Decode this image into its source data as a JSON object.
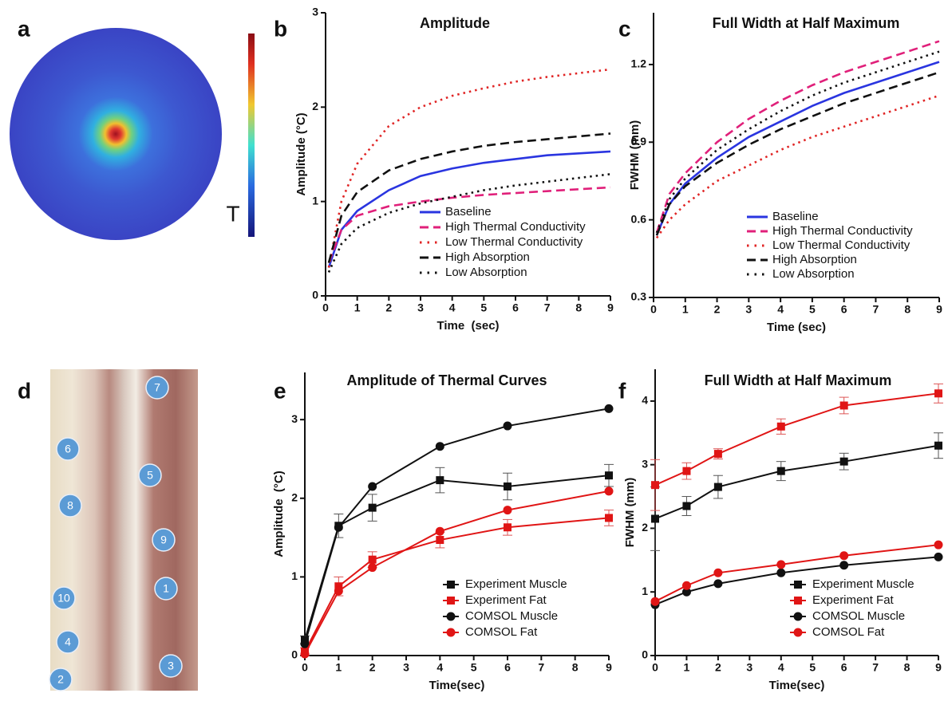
{
  "chart_data": [
    {
      "type": "heatmap",
      "panel": "a",
      "colorbar_label": "T"
    },
    {
      "type": "line",
      "panel": "b",
      "title": "Amplitude",
      "x_label": "Time  (sec)",
      "y_label": "Amplitude (°C)",
      "x": [
        0.1,
        0.5,
        1,
        2,
        3,
        4,
        5,
        6,
        7,
        8,
        9
      ],
      "xlim": [
        0,
        9
      ],
      "xticks": [
        0,
        1,
        2,
        3,
        4,
        5,
        6,
        7,
        8,
        9
      ],
      "ylim": [
        0,
        3
      ],
      "yticks": [
        0,
        1,
        2,
        3
      ],
      "legend": "lower right",
      "series": [
        {
          "name": "Baseline",
          "color": "#2a35e0",
          "dash": "solid",
          "values": [
            0.3,
            0.7,
            0.9,
            1.12,
            1.27,
            1.35,
            1.41,
            1.45,
            1.49,
            1.51,
            1.53
          ]
        },
        {
          "name": "High Thermal Conductivity",
          "color": "#e0207a",
          "dash": "dashed",
          "values": [
            0.35,
            0.7,
            0.85,
            0.95,
            1.0,
            1.04,
            1.07,
            1.09,
            1.11,
            1.13,
            1.15
          ]
        },
        {
          "name": "Low Thermal Conductivity",
          "color": "#e02525",
          "dash": "dotted",
          "values": [
            0.3,
            1.0,
            1.4,
            1.8,
            2.0,
            2.12,
            2.2,
            2.27,
            2.32,
            2.36,
            2.4
          ]
        },
        {
          "name": "High Absorption",
          "color": "#111111",
          "dash": "dashed",
          "values": [
            0.35,
            0.85,
            1.1,
            1.33,
            1.45,
            1.53,
            1.59,
            1.63,
            1.66,
            1.69,
            1.72
          ]
        },
        {
          "name": "Low Absorption",
          "color": "#111111",
          "dash": "dotted",
          "values": [
            0.25,
            0.55,
            0.72,
            0.88,
            0.98,
            1.05,
            1.12,
            1.17,
            1.21,
            1.25,
            1.29
          ]
        }
      ]
    },
    {
      "type": "line",
      "panel": "c",
      "title": "Full Width at Half Maximum",
      "x_label": "Time (sec)",
      "y_label": "FWHM (mm)",
      "x": [
        0.1,
        0.5,
        1,
        2,
        3,
        4,
        5,
        6,
        7,
        8,
        9
      ],
      "xlim": [
        0,
        9
      ],
      "xticks": [
        0,
        1,
        2,
        3,
        4,
        5,
        6,
        7,
        8,
        9
      ],
      "ylim": [
        0.3,
        1.4
      ],
      "yticks": [
        0.3,
        0.6,
        0.9,
        1.2
      ],
      "legend": "lower right",
      "series": [
        {
          "name": "Baseline",
          "color": "#2a35e0",
          "dash": "solid",
          "values": [
            0.54,
            0.66,
            0.74,
            0.84,
            0.92,
            0.98,
            1.04,
            1.09,
            1.13,
            1.17,
            1.21
          ]
        },
        {
          "name": "High Thermal Conductivity",
          "color": "#e0207a",
          "dash": "dashed",
          "values": [
            0.55,
            0.7,
            0.78,
            0.9,
            0.99,
            1.06,
            1.12,
            1.17,
            1.21,
            1.25,
            1.29
          ]
        },
        {
          "name": "Low Thermal Conductivity",
          "color": "#e02525",
          "dash": "dotted",
          "values": [
            0.53,
            0.6,
            0.66,
            0.75,
            0.81,
            0.87,
            0.92,
            0.96,
            1.0,
            1.04,
            1.08
          ]
        },
        {
          "name": "High Absorption",
          "color": "#111111",
          "dash": "dashed",
          "values": [
            0.54,
            0.66,
            0.73,
            0.82,
            0.89,
            0.95,
            1.0,
            1.05,
            1.09,
            1.13,
            1.17
          ]
        },
        {
          "name": "Low Absorption",
          "color": "#111111",
          "dash": "dotted",
          "values": [
            0.55,
            0.68,
            0.76,
            0.87,
            0.95,
            1.02,
            1.08,
            1.13,
            1.17,
            1.21,
            1.25
          ]
        }
      ]
    },
    {
      "type": "photo",
      "panel": "d",
      "markers": [
        "7",
        "6",
        "5",
        "8",
        "9",
        "1",
        "10",
        "4",
        "3",
        "2"
      ]
    },
    {
      "type": "line",
      "panel": "e",
      "title": "Amplitude of Thermal Curves",
      "x_label": "Time(sec)",
      "y_label": "Amplitude  (°C)",
      "x": [
        0,
        1,
        2,
        4,
        6,
        9
      ],
      "xlim": [
        0,
        9
      ],
      "xticks": [
        0,
        1,
        2,
        3,
        4,
        5,
        6,
        7,
        8,
        9
      ],
      "ylim": [
        0,
        3.6
      ],
      "yticks": [
        0,
        1,
        2,
        3
      ],
      "legend": "lower right",
      "series": [
        {
          "name": "Experiment Muscle",
          "color": "#111111",
          "dash": "solid",
          "marker": "square",
          "values": [
            0.2,
            1.65,
            1.88,
            2.23,
            2.15,
            2.29
          ],
          "errors": [
            0.05,
            0.15,
            0.17,
            0.16,
            0.17,
            0.14
          ]
        },
        {
          "name": "Experiment Fat",
          "color": "#e01515",
          "dash": "solid",
          "marker": "square",
          "values": [
            0.05,
            0.88,
            1.22,
            1.47,
            1.63,
            1.75
          ],
          "errors": [
            0.05,
            0.12,
            0.1,
            0.1,
            0.1,
            0.1
          ]
        },
        {
          "name": "COMSOL Muscle",
          "color": "#111111",
          "dash": "solid",
          "marker": "circle",
          "values": [
            0.15,
            1.63,
            2.15,
            2.66,
            2.92,
            3.14
          ]
        },
        {
          "name": "COMSOL Fat",
          "color": "#e01515",
          "dash": "solid",
          "marker": "circle",
          "values": [
            0.02,
            0.82,
            1.12,
            1.58,
            1.85,
            2.09
          ]
        }
      ]
    },
    {
      "type": "line",
      "panel": "f",
      "title": "Full Width at Half Maximum",
      "x_label": "Time(sec)",
      "y_label": "FWHM (mm)",
      "x": [
        0,
        1,
        2,
        4,
        6,
        9
      ],
      "xlim": [
        0,
        9
      ],
      "xticks": [
        0,
        1,
        2,
        3,
        4,
        5,
        6,
        7,
        8,
        9
      ],
      "ylim": [
        0,
        4.5
      ],
      "yticks": [
        0,
        1,
        2,
        3,
        4
      ],
      "legend": "lower right",
      "series": [
        {
          "name": "Experiment Muscle",
          "color": "#111111",
          "dash": "solid",
          "marker": "square",
          "values": [
            2.15,
            2.35,
            2.65,
            2.9,
            3.05,
            3.3
          ],
          "errors": [
            0.5,
            0.15,
            0.18,
            0.15,
            0.13,
            0.2
          ]
        },
        {
          "name": "Experiment Fat",
          "color": "#e01515",
          "dash": "solid",
          "marker": "square",
          "values": [
            2.68,
            2.9,
            3.17,
            3.6,
            3.93,
            4.12
          ],
          "errors": [
            0.4,
            0.13,
            0.08,
            0.12,
            0.13,
            0.15
          ]
        },
        {
          "name": "COMSOL Muscle",
          "color": "#111111",
          "dash": "solid",
          "marker": "circle",
          "values": [
            0.8,
            1.0,
            1.13,
            1.3,
            1.42,
            1.55
          ]
        },
        {
          "name": "COMSOL Fat",
          "color": "#e01515",
          "dash": "solid",
          "marker": "circle",
          "values": [
            0.85,
            1.1,
            1.3,
            1.43,
            1.57,
            1.74
          ]
        }
      ]
    }
  ]
}
